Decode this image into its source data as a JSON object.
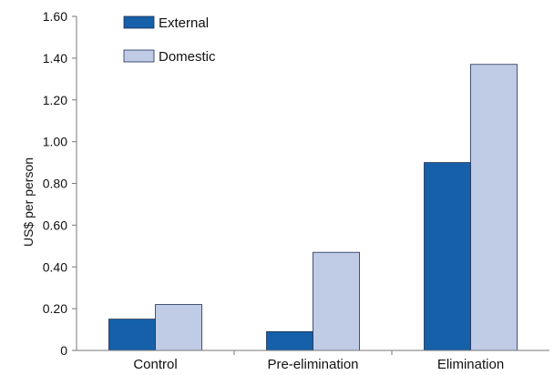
{
  "chart_data": {
    "type": "bar",
    "categories": [
      "Control",
      "Pre-elimination",
      "Elimination"
    ],
    "series": [
      {
        "name": "External",
        "values": [
          0.15,
          0.09,
          0.9
        ],
        "color": "#1560a8"
      },
      {
        "name": "Domestic",
        "values": [
          0.22,
          0.47,
          1.37
        ],
        "color": "#c0cbe6"
      }
    ],
    "title": "",
    "xlabel": "",
    "ylabel": "US$ per person",
    "ylim": [
      0,
      1.6
    ],
    "yticks": [
      {
        "value": 0,
        "label": "0"
      },
      {
        "value": 0.2,
        "label": "0.20"
      },
      {
        "value": 0.4,
        "label": "0.40"
      },
      {
        "value": 0.6,
        "label": "0.60"
      },
      {
        "value": 0.8,
        "label": "0.80"
      },
      {
        "value": 1.0,
        "label": "1.00"
      },
      {
        "value": 1.2,
        "label": "1.20"
      },
      {
        "value": 1.4,
        "label": "1.40"
      },
      {
        "value": 1.6,
        "label": "1.60"
      }
    ],
    "grid": false,
    "legend_position": "top-left"
  }
}
